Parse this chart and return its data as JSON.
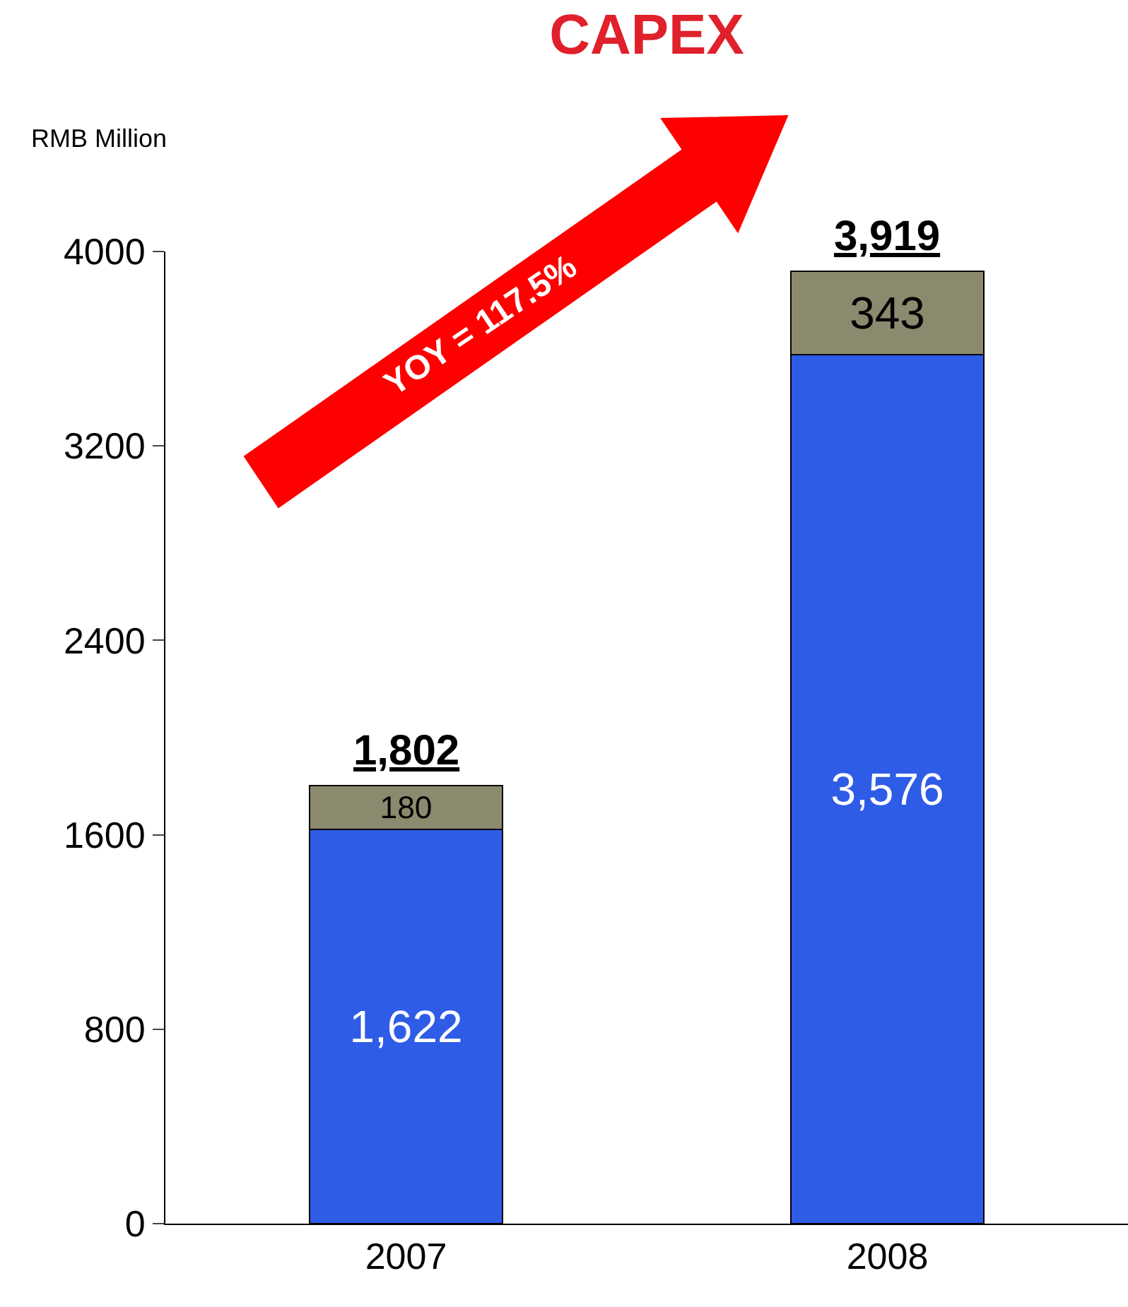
{
  "chart_data": {
    "type": "bar",
    "title": "CAPEX",
    "ylabel": "RMB Million",
    "categories": [
      "2007",
      "2008"
    ],
    "stacked": true,
    "series": [
      {
        "color": "#2f5ce6",
        "values": [
          1622,
          3576
        ],
        "value_labels": [
          "1,622",
          "3,576"
        ]
      },
      {
        "color": "#8c8a6e",
        "values": [
          180,
          343
        ],
        "value_labels": [
          "180",
          "343"
        ]
      }
    ],
    "totals": [
      "1,802",
      "3,919"
    ],
    "annotations": [
      "YOY = 117.5%"
    ],
    "ylim": [
      0,
      4000
    ],
    "yticks": [
      0,
      800,
      1600,
      2400,
      3200,
      4000
    ],
    "legend": false
  }
}
